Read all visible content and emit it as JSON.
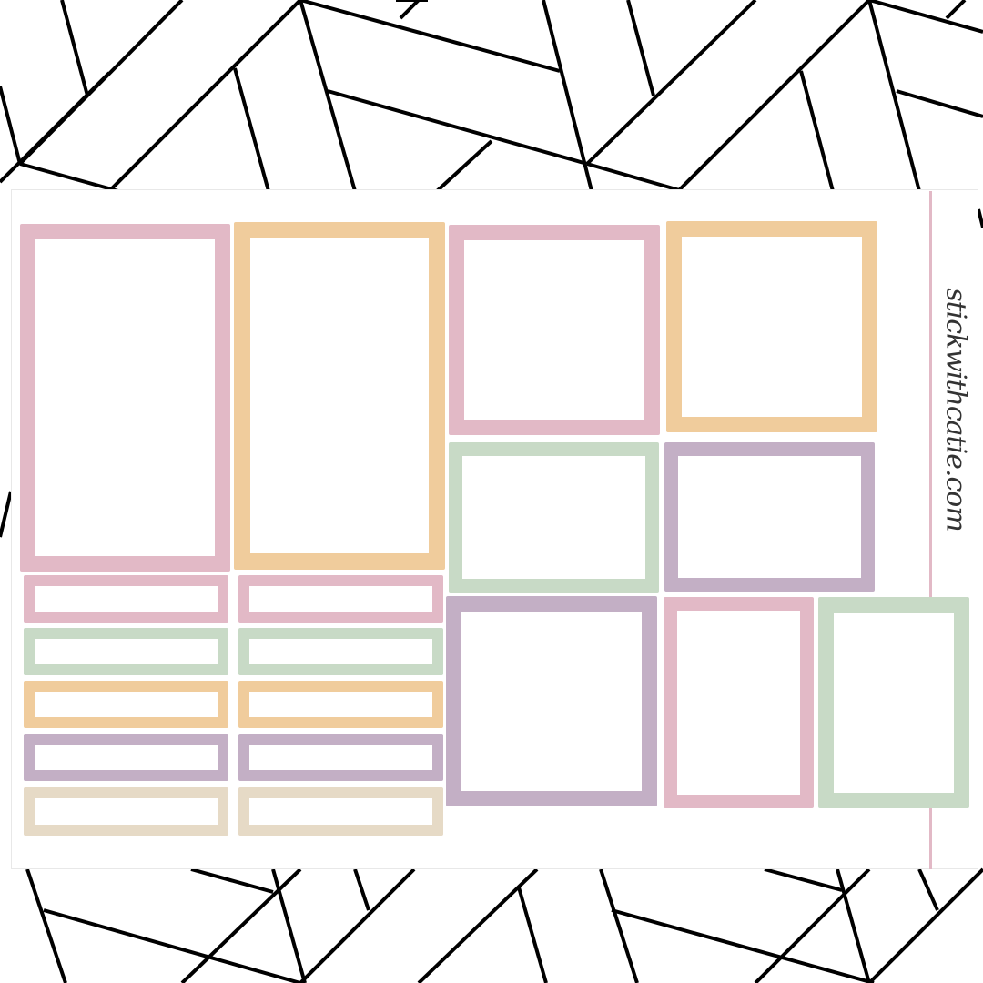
{
  "brand_text": "stickwithcatie.com",
  "colors": {
    "pink": "#e2b9c6",
    "orange": "#f0cc9c",
    "green": "#c8dac6",
    "purple": "#c3afc5",
    "beige": "#e6dac6",
    "background_lines": "#000000"
  },
  "stickers": [
    {
      "type": "large-frame",
      "color": "pink"
    },
    {
      "type": "large-frame",
      "color": "orange"
    },
    {
      "type": "square-frame",
      "color": "pink"
    },
    {
      "type": "square-frame",
      "color": "orange"
    },
    {
      "type": "medium-frame",
      "color": "green"
    },
    {
      "type": "medium-frame",
      "color": "purple"
    },
    {
      "type": "square-frame",
      "color": "purple"
    },
    {
      "type": "tall-frame",
      "color": "pink"
    },
    {
      "type": "tall-frame",
      "color": "green"
    },
    {
      "type": "label-strip",
      "color": "pink"
    },
    {
      "type": "label-strip",
      "color": "green"
    },
    {
      "type": "label-strip",
      "color": "orange"
    },
    {
      "type": "label-strip",
      "color": "purple"
    },
    {
      "type": "label-strip",
      "color": "beige"
    },
    {
      "type": "label-strip",
      "color": "pink"
    },
    {
      "type": "label-strip",
      "color": "green"
    },
    {
      "type": "label-strip",
      "color": "orange"
    },
    {
      "type": "label-strip",
      "color": "purple"
    },
    {
      "type": "label-strip",
      "color": "beige"
    }
  ]
}
